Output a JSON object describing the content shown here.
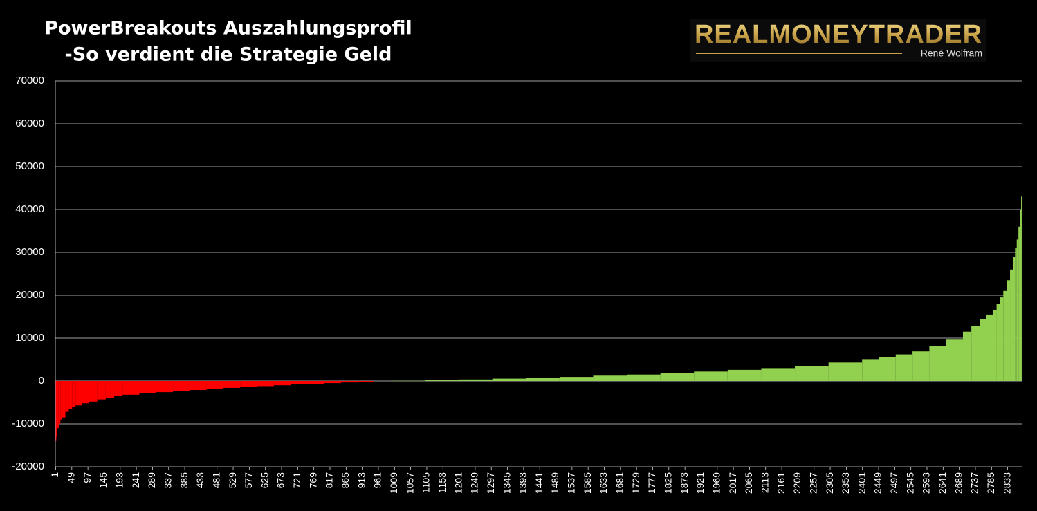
{
  "chart_data": {
    "type": "bar",
    "title": [
      "PowerBreakouts Auszahlungsprofil",
      "-So verdient die Strategie Geld"
    ],
    "logo": {
      "brand": "REALMONEYTRADER",
      "author": "René Wolfram"
    },
    "x": [
      1,
      3,
      6,
      10,
      15,
      20,
      30,
      40,
      50,
      60,
      80,
      100,
      125,
      150,
      175,
      200,
      250,
      300,
      350,
      400,
      450,
      500,
      550,
      600,
      650,
      700,
      750,
      800,
      850,
      900,
      946,
      1000,
      1100,
      1200,
      1300,
      1400,
      1500,
      1600,
      1700,
      1800,
      1900,
      2000,
      2100,
      2200,
      2300,
      2400,
      2450,
      2500,
      2550,
      2600,
      2650,
      2700,
      2725,
      2750,
      2770,
      2790,
      2800,
      2810,
      2820,
      2830,
      2840,
      2850,
      2855,
      2860,
      2865,
      2870,
      2873,
      2875,
      2876
    ],
    "values": [
      -14000,
      -13000,
      -11000,
      -10000,
      -9000,
      -8500,
      -7200,
      -6500,
      -6000,
      -5700,
      -5200,
      -4800,
      -4300,
      -3900,
      -3500,
      -3200,
      -2900,
      -2600,
      -2300,
      -2100,
      -1800,
      -1600,
      -1400,
      -1200,
      -1000,
      -800,
      -650,
      -500,
      -350,
      -200,
      0,
      50,
      200,
      350,
      550,
      750,
      950,
      1250,
      1500,
      1800,
      2200,
      2600,
      3000,
      3500,
      4300,
      5100,
      5600,
      6200,
      6900,
      8200,
      9800,
      11500,
      12800,
      14500,
      15500,
      16500,
      18000,
      19500,
      21000,
      23500,
      26000,
      29000,
      31000,
      33000,
      36000,
      40000,
      43000,
      47000,
      60500
    ],
    "negative_color": "#ff0000",
    "positive_color": "#92d050",
    "xlim": [
      0,
      2877
    ],
    "xticks": [
      1,
      49,
      97,
      145,
      193,
      241,
      289,
      337,
      385,
      433,
      481,
      529,
      577,
      625,
      673,
      721,
      769,
      817,
      865,
      913,
      961,
      1009,
      1057,
      1105,
      1153,
      1201,
      1249,
      1297,
      1345,
      1393,
      1441,
      1489,
      1537,
      1585,
      1633,
      1681,
      1729,
      1777,
      1825,
      1873,
      1921,
      1969,
      2017,
      2065,
      2113,
      2161,
      2209,
      2257,
      2305,
      2353,
      2401,
      2449,
      2497,
      2545,
      2593,
      2641,
      2689,
      2737,
      2785,
      2833
    ],
    "ylim": [
      -20000,
      70000
    ],
    "yticks": [
      -20000,
      -10000,
      0,
      10000,
      20000,
      30000,
      40000,
      50000,
      60000,
      70000
    ],
    "grid": true
  }
}
